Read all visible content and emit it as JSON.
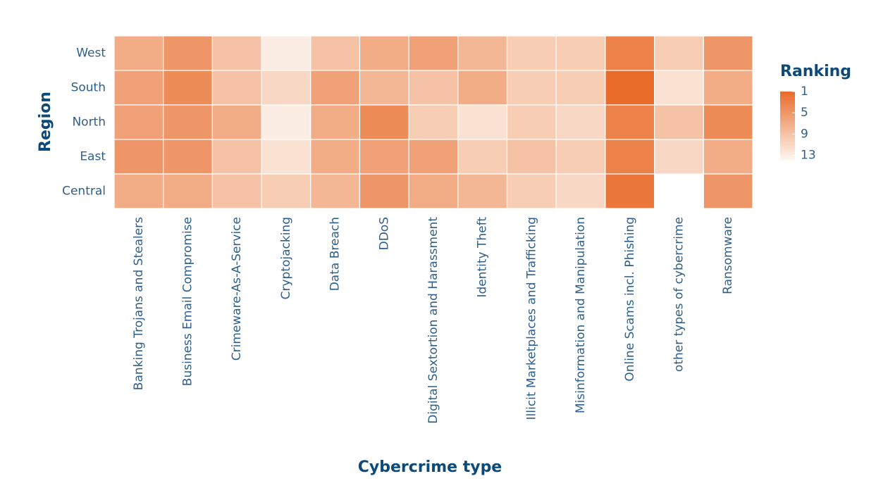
{
  "chart_data": {
    "type": "heatmap",
    "x_label": "Cybercrime type",
    "y_label": "Region",
    "legend_title": "Ranking",
    "categories": [
      "Banking Trojans and Stealers",
      "Business Email Compromise",
      "Crimeware-As-A-Service",
      "Cryptojacking",
      "Data Breach",
      "DDoS",
      "Digital Sextortion and Harassment",
      "Identity Theft",
      "Illicit Marketplaces and Trafficking",
      "Misinformation and Manipulation",
      "Online Scams incl. Phishing",
      "other types of cybercrime",
      "Ransomware"
    ],
    "rows": [
      "West",
      "South",
      "North",
      "East",
      "Central"
    ],
    "values": [
      [
        7,
        5,
        9,
        13,
        9,
        7,
        6,
        8,
        10,
        10,
        3,
        10,
        5
      ],
      [
        6,
        4,
        9,
        11,
        6,
        8,
        9,
        7,
        10,
        10,
        1,
        12,
        7
      ],
      [
        6,
        5,
        7,
        13,
        7,
        4,
        10,
        12,
        10,
        11,
        3,
        9,
        4
      ],
      [
        5,
        5,
        9,
        12,
        7,
        6,
        6,
        10,
        9,
        10,
        3,
        11,
        7
      ],
      [
        7,
        7,
        9,
        10,
        8,
        5,
        7,
        8,
        10,
        11,
        2,
        null,
        5
      ]
    ],
    "colorscale": [
      "#e96b2a",
      "#fdf8f2"
    ],
    "zlim": [
      1,
      14
    ],
    "zticks": [
      1,
      5,
      9,
      13
    ]
  }
}
